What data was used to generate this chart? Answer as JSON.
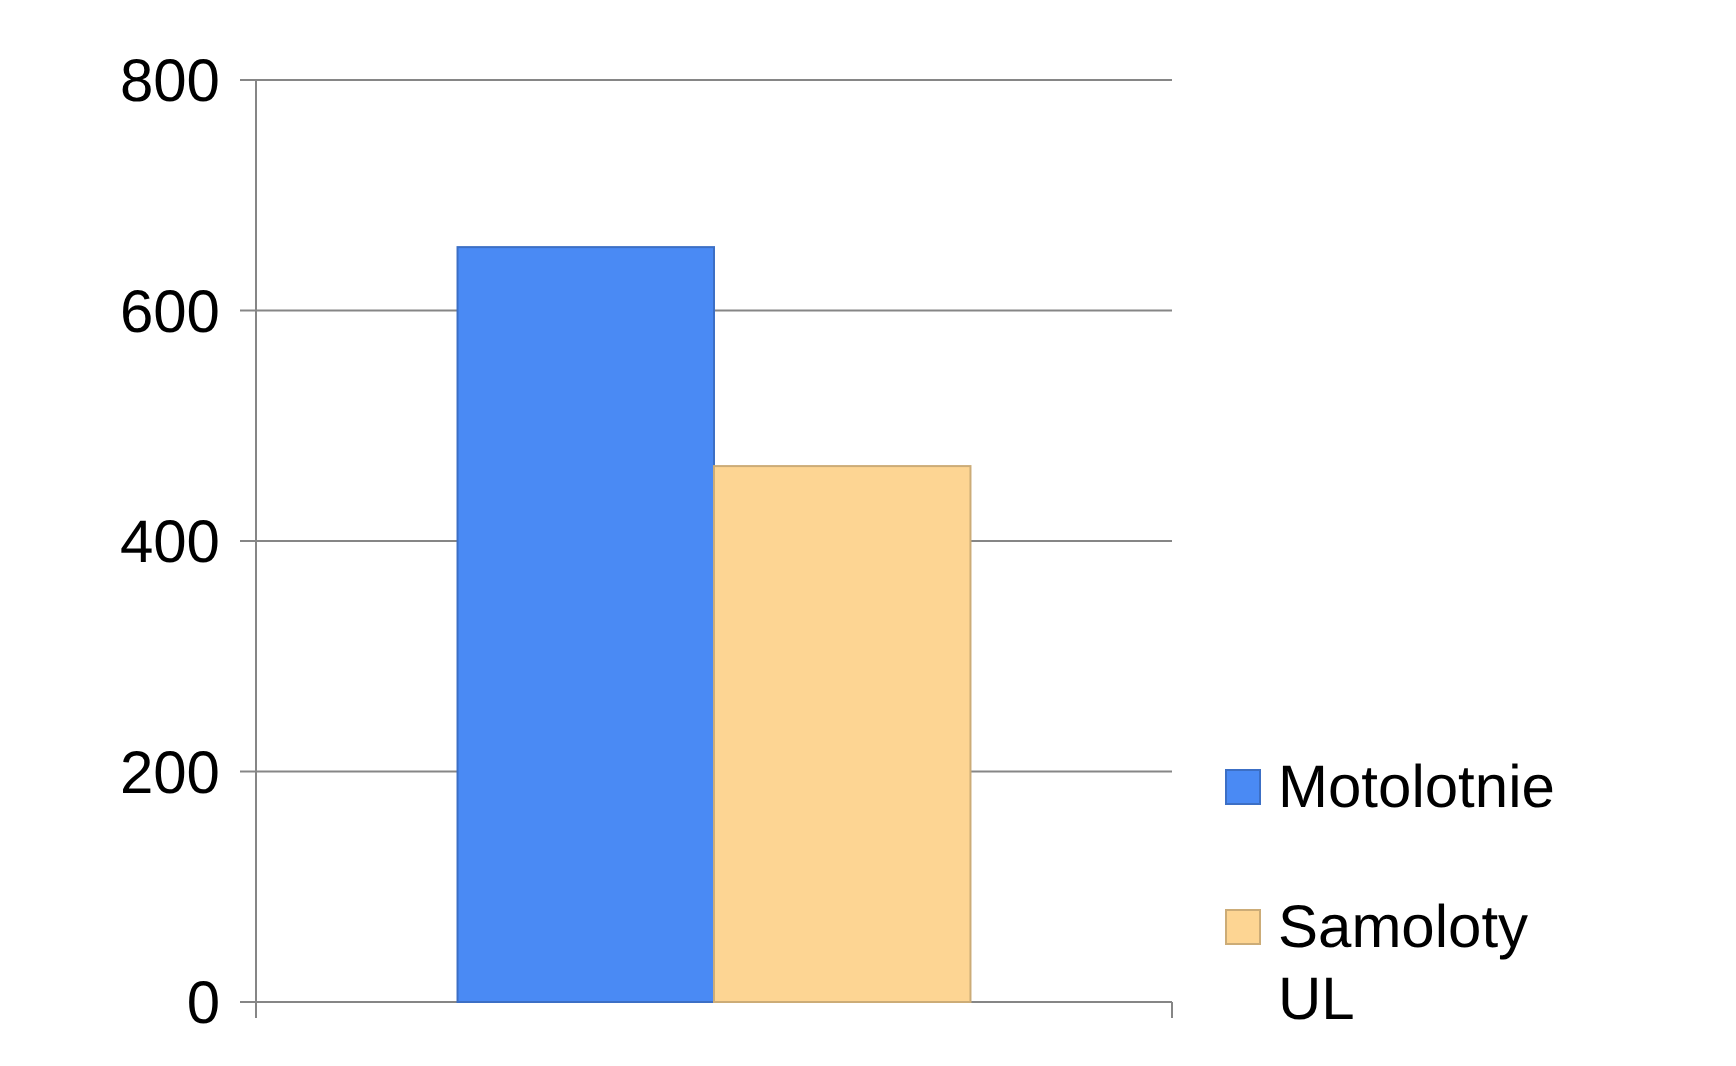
{
  "chart_data": {
    "type": "bar",
    "categories": [
      null
    ],
    "series": [
      {
        "name": "Motolotnie",
        "color": "#4a8af4",
        "values": [
          655
        ]
      },
      {
        "name": "Samoloty UL",
        "color": "#fdd593",
        "values": [
          465
        ]
      }
    ],
    "ylim": [
      0,
      800
    ],
    "yticks": [
      0,
      200,
      400,
      600,
      800
    ],
    "grid": "y",
    "legend": "right"
  }
}
